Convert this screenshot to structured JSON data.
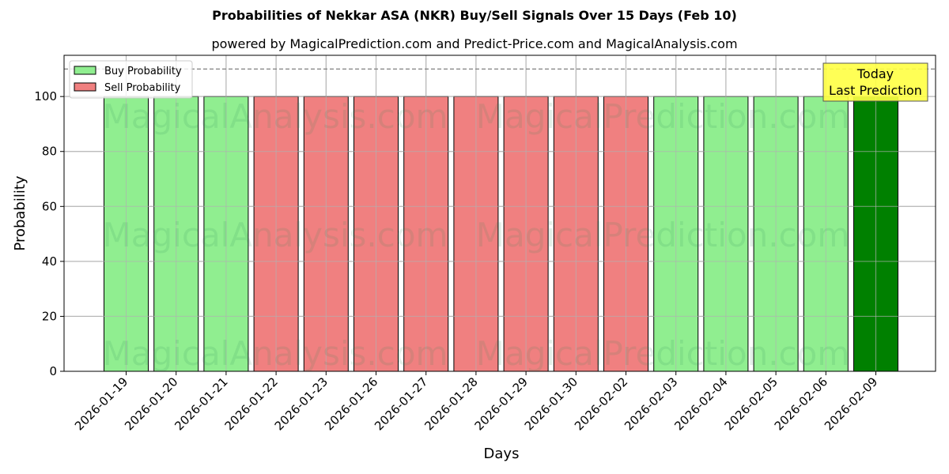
{
  "chart_data": {
    "type": "bar",
    "title": "Probabilities of Nekkar ASA (NKR) Buy/Sell Signals Over 15 Days (Feb 10)",
    "subtitle": "powered by MagicalPrediction.com and Predict-Price.com and MagicalAnalysis.com",
    "xlabel": "Days",
    "ylabel": "Probability",
    "ylim": [
      0,
      115
    ],
    "yticks": [
      0,
      20,
      40,
      60,
      80,
      100
    ],
    "grid": true,
    "legend_position": "upper left",
    "legend": [
      "Buy Probability",
      "Sell Probability"
    ],
    "categories": [
      "2026-01-19",
      "2026-01-20",
      "2026-01-21",
      "2026-01-22",
      "2026-01-23",
      "2026-01-26",
      "2026-01-27",
      "2026-01-28",
      "2026-01-29",
      "2026-01-30",
      "2026-02-02",
      "2026-02-03",
      "2026-02-04",
      "2026-02-05",
      "2026-02-06",
      "2026-02-09"
    ],
    "values": [
      100,
      100,
      100,
      100,
      100,
      100,
      100,
      100,
      100,
      100,
      100,
      100,
      100,
      100,
      100,
      100
    ],
    "signals": [
      "buy",
      "buy",
      "buy",
      "sell",
      "sell",
      "sell",
      "sell",
      "sell",
      "sell",
      "sell",
      "sell",
      "buy",
      "buy",
      "buy",
      "buy",
      "today"
    ],
    "series": [
      {
        "name": "Buy Probability",
        "values": [
          100,
          100,
          100,
          0,
          0,
          0,
          0,
          0,
          0,
          0,
          0,
          100,
          100,
          100,
          100,
          100
        ]
      },
      {
        "name": "Sell Probability",
        "values": [
          0,
          0,
          0,
          100,
          100,
          100,
          100,
          100,
          100,
          100,
          100,
          0,
          0,
          0,
          0,
          0
        ]
      }
    ],
    "reference_line": {
      "y": 110,
      "style": "dashed"
    },
    "annotation": {
      "text_line1": "Today",
      "text_line2": "Last Prediction"
    },
    "watermarks": [
      "MagicalAnalysis.com",
      "MagicalPrediction.com"
    ],
    "colors": {
      "buy": "#90ee90",
      "sell": "#f08080",
      "today": "#008000",
      "annotation_bg": "#ffff44"
    }
  }
}
